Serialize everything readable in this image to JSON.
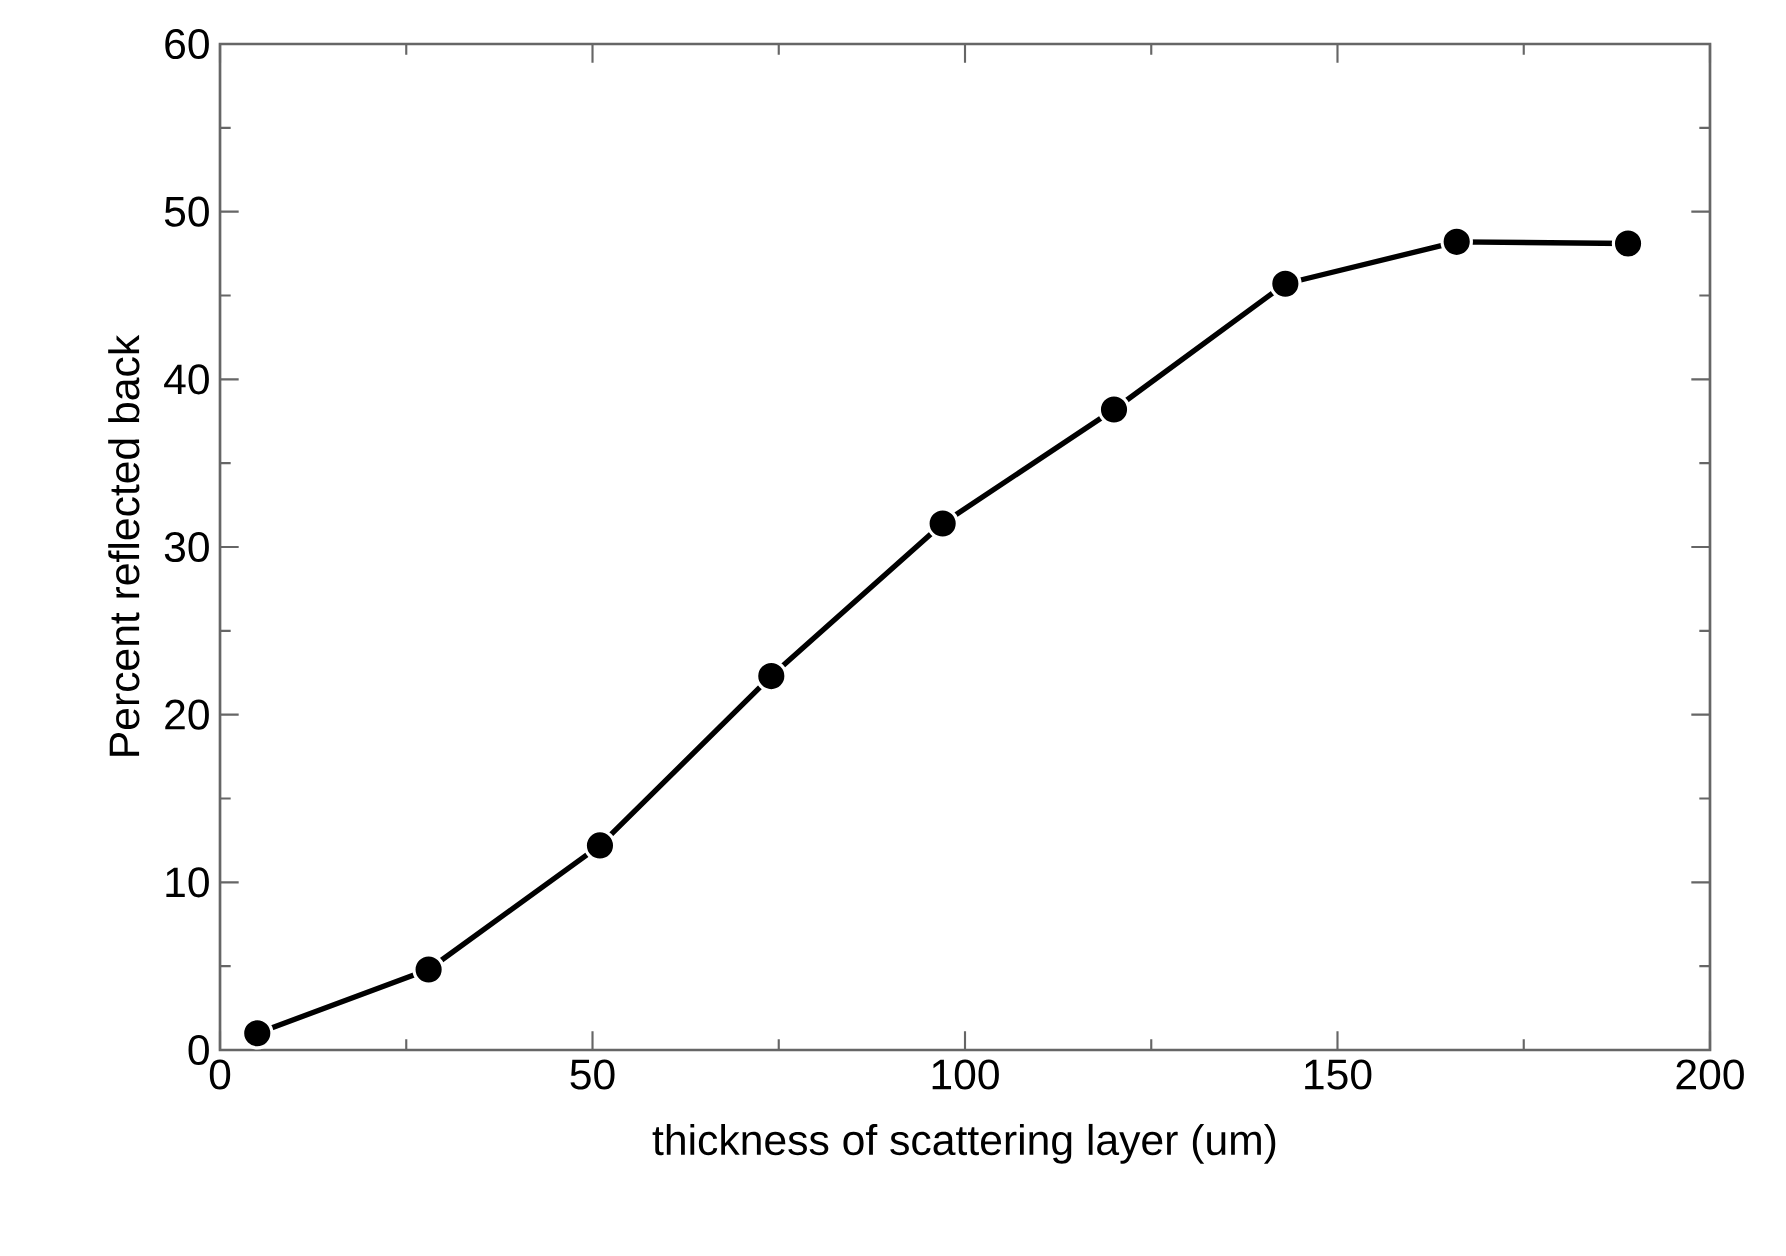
{
  "chart_data": {
    "type": "line",
    "xlabel": "thickness of scattering layer (um)",
    "ylabel": "Percent reflected back",
    "x": [
      5,
      28,
      51,
      74,
      97,
      120,
      143,
      166,
      189
    ],
    "values": [
      1,
      4.8,
      12.2,
      22.3,
      31.4,
      38.2,
      45.7,
      48.2,
      48.1
    ],
    "color": "#000000",
    "marker": "circle",
    "line_style": "solid",
    "grid": false,
    "xlim": [
      0,
      200
    ],
    "ylim": [
      0,
      60
    ],
    "xticks": [
      0,
      50,
      100,
      150,
      200
    ],
    "yticks": [
      0,
      10,
      20,
      30,
      40,
      50,
      60
    ]
  }
}
